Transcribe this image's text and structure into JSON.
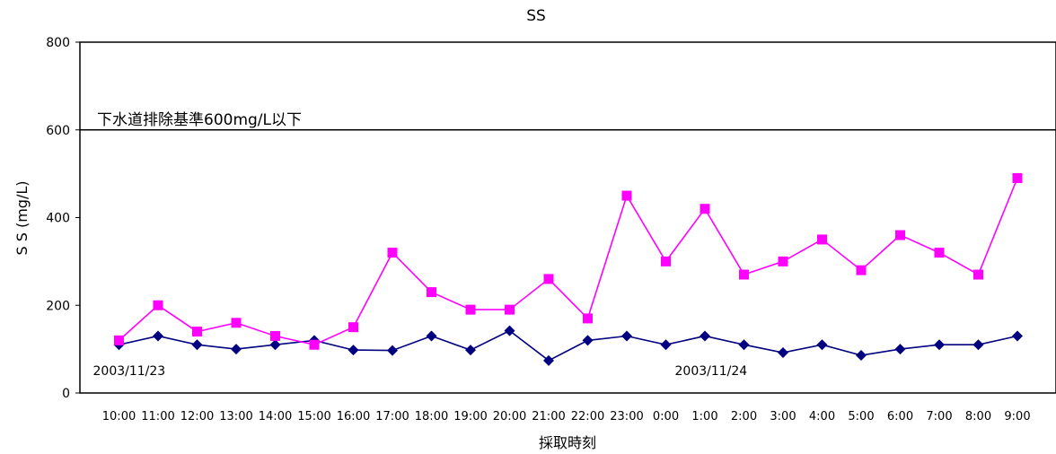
{
  "chart_data": {
    "type": "line",
    "title": "SS",
    "xlabel": "採取時刻",
    "ylabel": "S S (mg/L)",
    "ylim": [
      0,
      800
    ],
    "yticks": [
      0,
      200,
      400,
      600,
      800
    ],
    "grid": false,
    "categories": [
      "10:00",
      "11:00",
      "12:00",
      "13:00",
      "14:00",
      "15:00",
      "16:00",
      "17:00",
      "18:00",
      "19:00",
      "20:00",
      "21:00",
      "22:00",
      "23:00",
      "0:00",
      "1:00",
      "2:00",
      "3:00",
      "4:00",
      "5:00",
      "6:00",
      "7:00",
      "8:00",
      "9:00"
    ],
    "series": [
      {
        "color": "#000080",
        "marker": "diamond",
        "values": [
          110,
          130,
          110,
          100,
          110,
          120,
          98,
          97,
          130,
          98,
          142,
          74,
          120,
          130,
          110,
          130,
          110,
          92,
          110,
          86,
          100,
          110,
          110,
          130
        ]
      },
      {
        "color": "#FF00FF",
        "marker": "square",
        "values": [
          120,
          200,
          140,
          160,
          130,
          110,
          150,
          320,
          230,
          190,
          190,
          260,
          170,
          450,
          300,
          420,
          270,
          300,
          350,
          280,
          360,
          320,
          270,
          490
        ]
      }
    ],
    "reference_line": {
      "value": 600,
      "label": "下水道排除基準600mg/L以下"
    },
    "date_annotations": [
      {
        "text": "2003/11/23",
        "category_index": 0
      },
      {
        "text": "2003/11/24",
        "category_index": 14
      }
    ]
  }
}
